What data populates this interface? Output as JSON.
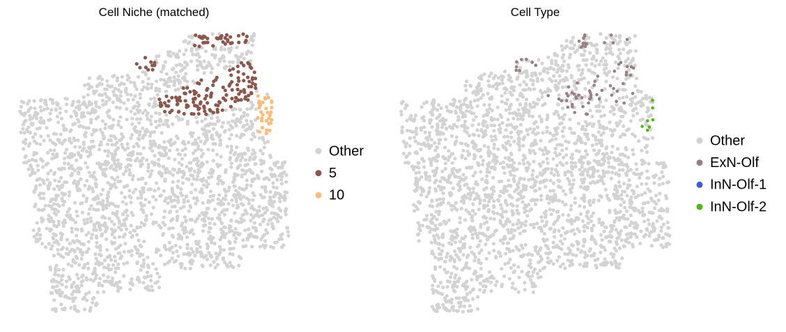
{
  "chart_data": [
    {
      "type": "scatter",
      "title": "Cell Niche (matched)",
      "series": [
        {
          "name": "Other",
          "color": "#d3d3d3"
        },
        {
          "name": "5",
          "color": "#8c564b"
        },
        {
          "name": "10",
          "color": "#ffbb78"
        }
      ]
    },
    {
      "type": "scatter",
      "title": "Cell Type",
      "series": [
        {
          "name": "Other",
          "color": "#d3d3d3"
        },
        {
          "name": "ExN-Olf",
          "color": "#9b7d84"
        },
        {
          "name": "InN-Olf-1",
          "color": "#3b5be6"
        },
        {
          "name": "InN-Olf-2",
          "color": "#4dbb14"
        }
      ]
    }
  ]
}
